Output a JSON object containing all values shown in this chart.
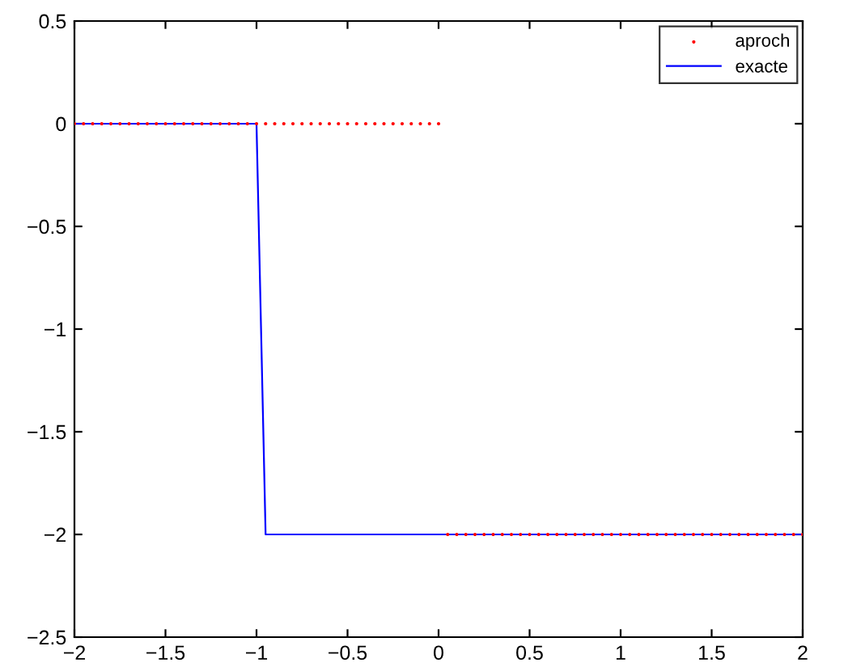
{
  "chart_data": {
    "type": "line",
    "xlim": [
      -2,
      2
    ],
    "ylim": [
      -2.5,
      0.5
    ],
    "xticks": [
      {
        "value": -2,
        "label": "−2"
      },
      {
        "value": -1.5,
        "label": "−1.5"
      },
      {
        "value": -1,
        "label": "−1"
      },
      {
        "value": -0.5,
        "label": "−0.5"
      },
      0,
      0.5,
      1,
      1.5,
      2
    ],
    "yticks": [
      {
        "value": -2.5,
        "label": "−2.5"
      },
      {
        "value": -2,
        "label": "−2"
      },
      {
        "value": -1.5,
        "label": "−1.5"
      },
      {
        "value": -1,
        "label": "−1"
      },
      {
        "value": -0.5,
        "label": "−0.5"
      },
      0,
      0.5
    ],
    "grid": false,
    "legend": "top right",
    "series": [
      {
        "name": "aproch",
        "type": "scatter",
        "color": "#ff0000",
        "marker": "circle",
        "x": [
          -2,
          -1.95,
          -1.9,
          -1.85,
          -1.8,
          -1.75,
          -1.7,
          -1.65,
          -1.6,
          -1.55,
          -1.5,
          -1.45,
          -1.4,
          -1.35,
          -1.3,
          -1.25,
          -1.2,
          -1.15,
          -1.1,
          -1.05,
          -1,
          -0.95,
          -0.9,
          -0.85,
          -0.8,
          -0.75,
          -0.7,
          -0.65,
          -0.6,
          -0.55,
          -0.5,
          -0.45,
          -0.4,
          -0.35,
          -0.3,
          -0.25,
          -0.2,
          -0.15,
          -0.1,
          -0.05,
          0,
          0.05,
          0.1,
          0.15,
          0.2,
          0.25,
          0.3,
          0.35,
          0.4,
          0.45,
          0.5,
          0.55,
          0.6,
          0.65,
          0.7,
          0.75,
          0.8,
          0.85,
          0.9,
          0.95,
          1,
          1.05,
          1.1,
          1.15,
          1.2,
          1.25,
          1.3,
          1.35,
          1.4,
          1.45,
          1.5,
          1.55,
          1.6,
          1.65,
          1.7,
          1.75,
          1.8,
          1.85,
          1.9,
          1.95,
          2
        ],
        "values": [
          0,
          0,
          0,
          0,
          0,
          0,
          0,
          0,
          0,
          0,
          0,
          0,
          0,
          0,
          0,
          0,
          0,
          0,
          0,
          0,
          0,
          0,
          0,
          0,
          0,
          0,
          0,
          0,
          0,
          0,
          0,
          0,
          0,
          0,
          0,
          0,
          0,
          0,
          0,
          0,
          0,
          -2,
          -2,
          -2,
          -2,
          -2,
          -2,
          -2,
          -2,
          -2,
          -2,
          -2,
          -2,
          -2,
          -2,
          -2,
          -2,
          -2,
          -2,
          -2,
          -2,
          -2,
          -2,
          -2,
          -2,
          -2,
          -2,
          -2,
          -2,
          -2,
          -2,
          -2,
          -2,
          -2,
          -2,
          -2,
          -2,
          -2,
          -2,
          -2,
          -2
        ]
      },
      {
        "name": "exacte",
        "color": "#0000ff",
        "line_style": "solid",
        "x": [
          -2,
          -1,
          -0.95,
          2
        ],
        "values": [
          0,
          0,
          -2,
          -2
        ]
      }
    ]
  }
}
